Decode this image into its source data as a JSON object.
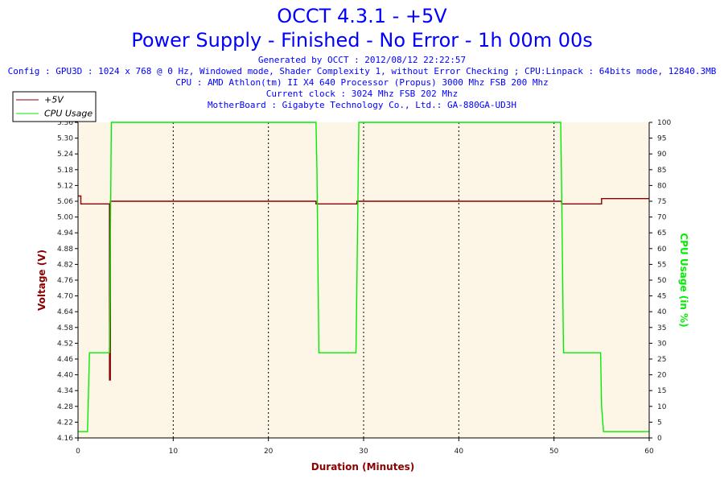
{
  "header": {
    "title": "OCCT 4.3.1 - +5V",
    "subtitle": "Power Supply - Finished - No Error - 1h 00m 00s",
    "info": [
      "Generated by OCCT : 2012/08/12 22:22:57",
      "Config : GPU3D : 1024 x 768 @ 0 Hz, Windowed mode, Shader Complexity 1, without Error Checking ; CPU:Linpack : 64bits mode, 12840.3MB",
      "CPU : AMD Athlon(tm) II X4 640 Processor (Propus) 3000 Mhz FSB 200 Mhz",
      "Current clock : 3024 Mhz FSB 202 Mhz",
      "MotherBoard : Gigabyte Technology Co., Ltd.: GA-880GA-UD3H"
    ]
  },
  "colors": {
    "voltage": "#8b0000",
    "cpu": "#00ee00",
    "plot_bg": "#fdf5e6",
    "grid": "#000000",
    "title": "#0000ff"
  },
  "chart_data": {
    "type": "line",
    "xlabel": "Duration (Minutes)",
    "ylabel": "Voltage (V)",
    "y2label": "CPU Usage (in %)",
    "xlim": [
      0,
      60
    ],
    "ylim": [
      4.16,
      5.36
    ],
    "y2lim": [
      0,
      100
    ],
    "x_ticks": [
      0,
      10,
      20,
      30,
      40,
      50,
      60
    ],
    "y_ticks": [
      "4.16",
      "4.22",
      "4.28",
      "4.34",
      "4.40",
      "4.46",
      "4.52",
      "4.58",
      "4.64",
      "4.70",
      "4.76",
      "4.82",
      "4.88",
      "4.94",
      "5.00",
      "5.06",
      "5.12",
      "5.18",
      "5.24",
      "5.30",
      "5.36"
    ],
    "y2_ticks": [
      0,
      5,
      10,
      15,
      20,
      25,
      30,
      35,
      40,
      45,
      50,
      55,
      60,
      65,
      70,
      75,
      80,
      85,
      90,
      95,
      100
    ],
    "grid": "vertical dashed",
    "legend_position": "top-left",
    "series": [
      {
        "name": "+5V",
        "axis": "left",
        "x": [
          0,
          0.3,
          0.3,
          1.0,
          1.0,
          3.3,
          3.3,
          3.4,
          3.4,
          25.0,
          25.0,
          29.3,
          29.3,
          50.8,
          50.8,
          55.0,
          55.0,
          60
        ],
        "y": [
          5.08,
          5.08,
          5.05,
          5.05,
          5.05,
          5.05,
          4.38,
          4.38,
          5.06,
          5.06,
          5.05,
          5.05,
          5.06,
          5.06,
          5.05,
          5.05,
          5.07,
          5.07
        ]
      },
      {
        "name": "CPU Usage",
        "axis": "right",
        "x": [
          0,
          1.0,
          1.2,
          3.2,
          3.3,
          3.5,
          25.0,
          25.1,
          25.3,
          29.2,
          29.3,
          29.5,
          50.7,
          50.8,
          51.0,
          54.9,
          55.0,
          55.2,
          60
        ],
        "y": [
          2,
          2,
          27,
          27,
          27,
          100,
          100,
          85,
          27,
          27,
          50,
          100,
          100,
          80,
          27,
          27,
          10,
          2,
          2
        ]
      }
    ]
  }
}
